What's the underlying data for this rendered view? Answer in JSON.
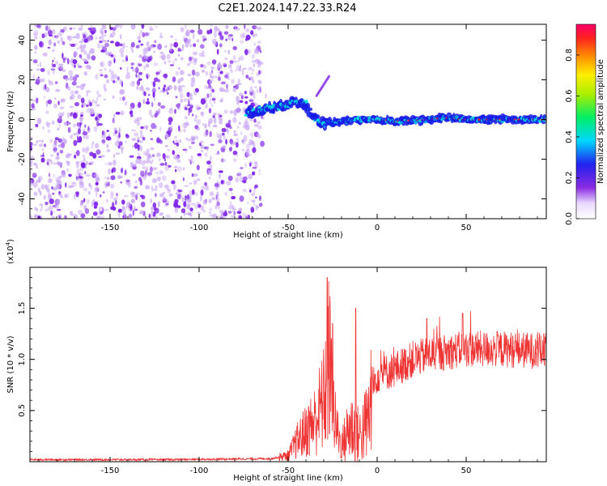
{
  "title": "C2E1.2024.147.22.33.R24",
  "colors": {
    "snr_line": "#ee3333",
    "speckle": "#7a1ee8",
    "speckle_light": "#c9a8f5",
    "signal_strong": "#ff2222",
    "signal_mid": "#00e0e0",
    "signal_low": "#1a1ae6"
  },
  "chart_data": [
    {
      "type": "heatmap",
      "xlabel": "Height of straight line (km)",
      "ylabel": "Frequency (Hz)",
      "xlim": [
        -195,
        95
      ],
      "ylim": [
        -50,
        48
      ],
      "x_ticks": [
        -150,
        -100,
        -50,
        0,
        50
      ],
      "y_ticks": [
        -40,
        -20,
        0,
        20,
        40
      ],
      "noise_region_x": [
        -195,
        -65
      ],
      "signal_band": [
        {
          "x": -73,
          "y": 3
        },
        {
          "x": -60,
          "y": 6
        },
        {
          "x": -52,
          "y": 7
        },
        {
          "x": -45,
          "y": 9
        },
        {
          "x": -40,
          "y": 8
        },
        {
          "x": -37,
          "y": 1
        },
        {
          "x": -30,
          "y": -2
        },
        {
          "x": -20,
          "y": -1
        },
        {
          "x": -10,
          "y": 0
        },
        {
          "x": 0,
          "y": 0
        },
        {
          "x": 10,
          "y": -1
        },
        {
          "x": 30,
          "y": 0
        },
        {
          "x": 38,
          "y": 1
        },
        {
          "x": 50,
          "y": 0
        },
        {
          "x": 70,
          "y": 0
        },
        {
          "x": 95,
          "y": 0
        }
      ],
      "colorbar": {
        "label": "Normalized spectral amplitude",
        "range": [
          0,
          0.95
        ],
        "ticks": [
          0.0,
          0.2,
          0.4,
          0.6,
          0.8
        ]
      }
    },
    {
      "type": "line",
      "xlabel": "Height of straight line (km)",
      "ylabel": "SNR (10 * v/v)",
      "y_scale_label": "(x10",
      "y_scale_exp": "4",
      "y_scale_close": ")",
      "xlim": [
        -195,
        95
      ],
      "ylim": [
        0,
        1.9
      ],
      "x_ticks": [
        -150,
        -100,
        -50,
        0,
        50
      ],
      "y_ticks": [
        0.5,
        1.0,
        1.5
      ],
      "y_tick_labels": [
        "0.5",
        "1.0",
        "1.5"
      ],
      "envelope": [
        {
          "x": -195,
          "y": 0.02
        },
        {
          "x": -120,
          "y": 0.02
        },
        {
          "x": -60,
          "y": 0.03
        },
        {
          "x": -50,
          "y": 0.06
        },
        {
          "x": -45,
          "y": 0.2
        },
        {
          "x": -40,
          "y": 0.3
        },
        {
          "x": -35,
          "y": 0.4
        },
        {
          "x": -30,
          "y": 0.6
        },
        {
          "x": -27,
          "y": 1.0
        },
        {
          "x": -24,
          "y": 0.4
        },
        {
          "x": -20,
          "y": 0.15
        },
        {
          "x": -15,
          "y": 0.35
        },
        {
          "x": -10,
          "y": 0.25
        },
        {
          "x": -5,
          "y": 0.4
        },
        {
          "x": -3,
          "y": 0.7
        },
        {
          "x": 0,
          "y": 0.85
        },
        {
          "x": 10,
          "y": 0.9
        },
        {
          "x": 20,
          "y": 1.0
        },
        {
          "x": 30,
          "y": 1.05
        },
        {
          "x": 50,
          "y": 1.1
        },
        {
          "x": 70,
          "y": 1.1
        },
        {
          "x": 95,
          "y": 1.08
        }
      ],
      "peaks": [
        {
          "x": -28,
          "y": 1.8
        },
        {
          "x": -25,
          "y": 1.35
        },
        {
          "x": -12,
          "y": 1.5
        },
        {
          "x": 28,
          "y": 1.4
        },
        {
          "x": 48,
          "y": 1.45
        }
      ]
    }
  ]
}
